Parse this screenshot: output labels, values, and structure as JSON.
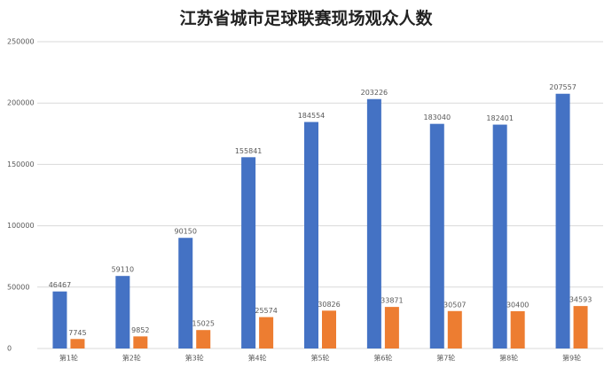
{
  "chart_data": {
    "type": "bar",
    "title": "江苏省城市足球联赛现场观众人数",
    "categories": [
      "第1轮",
      "第2轮",
      "第3轮",
      "第4轮",
      "第5轮",
      "第6轮",
      "第7轮",
      "第8轮",
      "第9轮"
    ],
    "series": [
      {
        "color": "#4472c4",
        "values": [
          46467,
          59110,
          90150,
          155841,
          184554,
          203226,
          183040,
          182401,
          207557
        ]
      },
      {
        "color": "#ed7d31",
        "values": [
          7745,
          9852,
          15025,
          25574,
          30826,
          33871,
          30507,
          30400,
          34593
        ]
      }
    ],
    "ylim": [
      0,
      250000
    ],
    "yticks": [
      0,
      50000,
      100000,
      150000,
      200000,
      250000
    ],
    "grid": true
  }
}
